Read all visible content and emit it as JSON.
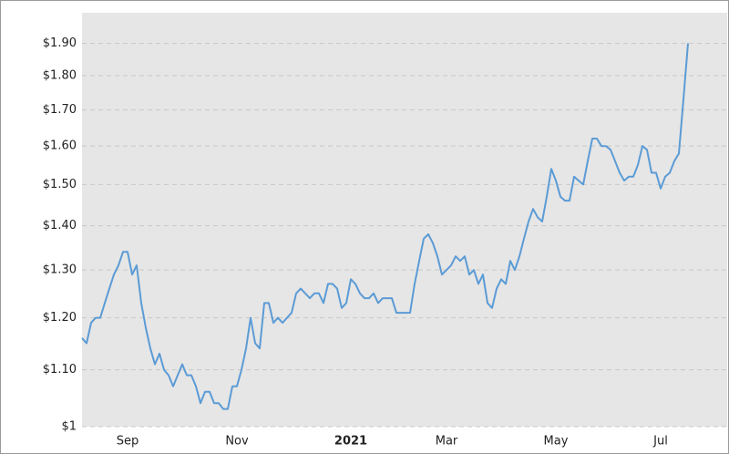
{
  "chart_data": {
    "type": "line",
    "log_scale": true,
    "grid": true,
    "color": "#5b9bd5",
    "ylim": [
      1,
      2
    ],
    "yticks": [
      {
        "value": 1,
        "label": "$1"
      },
      {
        "value": 1.1,
        "label": "$1.10"
      },
      {
        "value": 1.2,
        "label": "$1.20"
      },
      {
        "value": 1.3,
        "label": "$1.30"
      },
      {
        "value": 1.4,
        "label": "$1.40"
      },
      {
        "value": 1.5,
        "label": "$1.50"
      },
      {
        "value": 1.6,
        "label": "$1.60"
      },
      {
        "value": 1.7,
        "label": "$1.70"
      },
      {
        "value": 1.8,
        "label": "$1.80"
      },
      {
        "value": 1.9,
        "label": "$1.90"
      }
    ],
    "categories": [
      null,
      null,
      null,
      null,
      null,
      null,
      null,
      null,
      null,
      null,
      "Sep",
      null,
      null,
      null,
      null,
      null,
      null,
      null,
      null,
      null,
      null,
      null,
      null,
      null,
      null,
      null,
      null,
      null,
      null,
      null,
      null,
      null,
      null,
      null,
      "Nov",
      null,
      null,
      null,
      null,
      null,
      null,
      null,
      null,
      null,
      null,
      null,
      null,
      null,
      null,
      null,
      null,
      null,
      null,
      null,
      null,
      null,
      null,
      null,
      null,
      "2021",
      null,
      null,
      null,
      null,
      null,
      null,
      null,
      null,
      null,
      null,
      null,
      null,
      null,
      null,
      null,
      null,
      null,
      null,
      null,
      null,
      "Mar",
      null,
      null,
      null,
      null,
      null,
      null,
      null,
      null,
      null,
      null,
      null,
      null,
      null,
      null,
      null,
      null,
      null,
      null,
      null,
      null,
      null,
      null,
      null,
      "May",
      null,
      null,
      null,
      null,
      null,
      null,
      null,
      null,
      null,
      null,
      null,
      null,
      null,
      null,
      null,
      null,
      null,
      null,
      null,
      null,
      null,
      null,
      "Jul",
      null,
      null,
      null,
      null,
      null,
      null
    ],
    "values": [
      1.16,
      1.15,
      1.19,
      1.2,
      1.2,
      1.23,
      1.26,
      1.29,
      1.31,
      1.34,
      1.34,
      1.29,
      1.31,
      1.23,
      1.18,
      1.14,
      1.11,
      1.13,
      1.1,
      1.09,
      1.07,
      1.09,
      1.11,
      1.09,
      1.09,
      1.07,
      1.04,
      1.06,
      1.06,
      1.04,
      1.04,
      1.03,
      1.03,
      1.07,
      1.07,
      1.1,
      1.14,
      1.2,
      1.15,
      1.14,
      1.23,
      1.23,
      1.19,
      1.2,
      1.19,
      1.2,
      1.21,
      1.25,
      1.26,
      1.25,
      1.24,
      1.25,
      1.25,
      1.23,
      1.27,
      1.27,
      1.26,
      1.22,
      1.23,
      1.28,
      1.27,
      1.25,
      1.24,
      1.24,
      1.25,
      1.23,
      1.24,
      1.24,
      1.24,
      1.21,
      1.21,
      1.21,
      1.21,
      1.27,
      1.32,
      1.37,
      1.38,
      1.36,
      1.33,
      1.29,
      1.3,
      1.31,
      1.33,
      1.32,
      1.33,
      1.29,
      1.3,
      1.27,
      1.29,
      1.23,
      1.22,
      1.26,
      1.28,
      1.27,
      1.32,
      1.3,
      1.33,
      1.37,
      1.41,
      1.44,
      1.42,
      1.41,
      1.47,
      1.54,
      1.51,
      1.47,
      1.46,
      1.46,
      1.52,
      1.51,
      1.5,
      1.56,
      1.62,
      1.62,
      1.6,
      1.6,
      1.59,
      1.56,
      1.53,
      1.51,
      1.52,
      1.52,
      1.55,
      1.6,
      1.59,
      1.53,
      1.53,
      1.49,
      1.52,
      1.53,
      1.56,
      1.58,
      1.73,
      1.9
    ]
  }
}
